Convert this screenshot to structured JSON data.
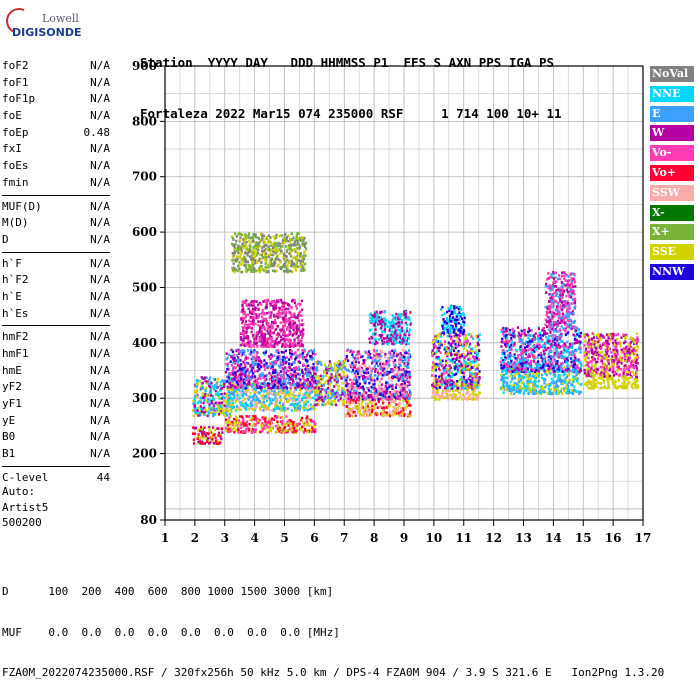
{
  "logo": {
    "line1": "Lowell",
    "line2": "DIGISONDE"
  },
  "header": {
    "labels": [
      "Station",
      "YYYY",
      "DAY",
      "DDD",
      "HHMMSS",
      "P1",
      "FFS",
      "S",
      "AXN",
      "PPS",
      "IGA",
      "PS"
    ],
    "values": [
      "Fortaleza",
      "2022",
      "Mar15",
      "074",
      "235000",
      "RSF",
      "",
      "1",
      "714",
      "100",
      "10+",
      "11"
    ]
  },
  "params": [
    [
      {
        "name": "foF2",
        "value": "N/A"
      },
      {
        "name": "foF1",
        "value": "N/A"
      },
      {
        "name": "foF1p",
        "value": "N/A"
      },
      {
        "name": "foE",
        "value": "N/A"
      },
      {
        "name": "foEp",
        "value": "0.48"
      },
      {
        "name": "fxI",
        "value": "N/A"
      },
      {
        "name": "foEs",
        "value": "N/A"
      },
      {
        "name": "fmin",
        "value": "N/A"
      }
    ],
    [
      {
        "name": "MUF(D)",
        "value": "N/A"
      },
      {
        "name": "M(D)",
        "value": "N/A"
      },
      {
        "name": "D",
        "value": "N/A"
      }
    ],
    [
      {
        "name": "h`F",
        "value": "N/A"
      },
      {
        "name": "h`F2",
        "value": "N/A"
      },
      {
        "name": "h`E",
        "value": "N/A"
      },
      {
        "name": "h`Es",
        "value": "N/A"
      }
    ],
    [
      {
        "name": "hmF2",
        "value": "N/A"
      },
      {
        "name": "hmF1",
        "value": "N/A"
      },
      {
        "name": "hmE",
        "value": "N/A"
      },
      {
        "name": "yF2",
        "value": "N/A"
      },
      {
        "name": "yF1",
        "value": "N/A"
      },
      {
        "name": "yE",
        "value": "N/A"
      },
      {
        "name": "B0",
        "value": "N/A"
      },
      {
        "name": "B1",
        "value": "N/A"
      }
    ],
    [
      {
        "name": "C-level",
        "value": "44"
      }
    ]
  ],
  "auto": {
    "line1": "Auto:",
    "line2": "Artist5",
    "line3": "500200"
  },
  "legend": [
    {
      "label": "NoVal",
      "color": "#808080"
    },
    {
      "label": "NNE",
      "color": "#00d8ff"
    },
    {
      "label": "E",
      "color": "#3ca0ff"
    },
    {
      "label": "W",
      "color": "#b400a0"
    },
    {
      "label": "Vo-",
      "color": "#ff3cb4"
    },
    {
      "label": "Vo+",
      "color": "#ff0032"
    },
    {
      "label": "SSW",
      "color": "#ffaaaa"
    },
    {
      "label": "X-",
      "color": "#007800"
    },
    {
      "label": "X+",
      "color": "#78b43c"
    },
    {
      "label": "SSE",
      "color": "#d2d200"
    },
    {
      "label": "NNW",
      "color": "#1e00dc"
    }
  ],
  "bottom": {
    "d_label": "D",
    "d_values": [
      "100",
      "200",
      "400",
      "600",
      "800",
      "1000",
      "1500",
      "3000",
      "[km]"
    ],
    "muf_label": "MUF",
    "muf_values": [
      "0.0",
      "0.0",
      "0.0",
      "0.0",
      "0.0",
      "0.0",
      "0.0",
      "0.0",
      "[MHz]"
    ],
    "footer": "FZA0M_2022074235000.RSF / 320fx256h 50 kHz 5.0 km / DPS-4 FZA0M 904 / 3.9 S 321.6 E   Ion2Png 1.3.20"
  },
  "chart_data": {
    "type": "scatter",
    "title": "",
    "xlabel": "",
    "ylabel": "",
    "xlim": [
      1,
      17
    ],
    "ylim": [
      80,
      900
    ],
    "x_ticks": [
      1,
      2,
      3,
      4,
      5,
      6,
      7,
      8,
      9,
      10,
      11,
      12,
      13,
      14,
      15,
      16,
      17
    ],
    "y_ticks": [
      80,
      200,
      300,
      400,
      500,
      600,
      700,
      800,
      900
    ],
    "grid": true,
    "legend_position": "right",
    "clusters": [
      {
        "x": [
          1.9,
          2.9
        ],
        "y": [
          220,
          250
        ],
        "colors": [
          "#ff0032",
          "#d2d200",
          "#b400a0"
        ]
      },
      {
        "x": [
          1.9,
          3.2
        ],
        "y": [
          270,
          340
        ],
        "colors": [
          "#3ca0ff",
          "#00d8ff",
          "#b400a0",
          "#d2d200"
        ]
      },
      {
        "x": [
          3.0,
          6.0
        ],
        "y": [
          240,
          270
        ],
        "colors": [
          "#ff0032",
          "#ff3cb4",
          "#d2d200"
        ]
      },
      {
        "x": [
          3.0,
          6.0
        ],
        "y": [
          280,
          330
        ],
        "colors": [
          "#d2d200",
          "#3ca0ff",
          "#00d8ff",
          "#ffaaaa"
        ]
      },
      {
        "x": [
          3.0,
          6.0
        ],
        "y": [
          320,
          390
        ],
        "colors": [
          "#b400a0",
          "#ff3cb4",
          "#3ca0ff",
          "#1e00dc"
        ]
      },
      {
        "x": [
          3.5,
          5.6
        ],
        "y": [
          395,
          480
        ],
        "colors": [
          "#b400a0",
          "#ff3cb4"
        ]
      },
      {
        "x": [
          3.2,
          5.7
        ],
        "y": [
          530,
          600
        ],
        "colors": [
          "#d2d200",
          "#78b43c",
          "#808080"
        ]
      },
      {
        "x": [
          6.0,
          7.0
        ],
        "y": [
          290,
          370
        ],
        "colors": [
          "#d2d200",
          "#3ca0ff",
          "#b400a0"
        ]
      },
      {
        "x": [
          7.0,
          9.2
        ],
        "y": [
          270,
          310
        ],
        "colors": [
          "#d2d200",
          "#ffaaaa",
          "#ff0032"
        ]
      },
      {
        "x": [
          7.0,
          9.2
        ],
        "y": [
          300,
          390
        ],
        "colors": [
          "#b400a0",
          "#3ca0ff",
          "#1e00dc",
          "#ffaaaa",
          "#ff3cb4"
        ]
      },
      {
        "x": [
          7.8,
          9.2
        ],
        "y": [
          400,
          460
        ],
        "colors": [
          "#b400a0",
          "#00d8ff"
        ]
      },
      {
        "x": [
          9.9,
          11.5
        ],
        "y": [
          300,
          330
        ],
        "colors": [
          "#d2d200",
          "#ffaaaa"
        ]
      },
      {
        "x": [
          9.9,
          11.5
        ],
        "y": [
          320,
          420
        ],
        "colors": [
          "#1e00dc",
          "#b400a0",
          "#00d8ff",
          "#ff3cb4",
          "#d2d200"
        ]
      },
      {
        "x": [
          10.2,
          11.0
        ],
        "y": [
          420,
          470
        ],
        "colors": [
          "#00d8ff",
          "#1e00dc"
        ]
      },
      {
        "x": [
          12.2,
          14.9
        ],
        "y": [
          310,
          360
        ],
        "colors": [
          "#3ca0ff",
          "#00d8ff",
          "#d2d200"
        ]
      },
      {
        "x": [
          12.2,
          14.9
        ],
        "y": [
          350,
          430
        ],
        "colors": [
          "#1e00dc",
          "#b400a0",
          "#3ca0ff",
          "#ff3cb4",
          "#00d8ff"
        ]
      },
      {
        "x": [
          13.7,
          14.7
        ],
        "y": [
          430,
          530
        ],
        "colors": [
          "#b400a0",
          "#ff3cb4",
          "#3ca0ff"
        ]
      },
      {
        "x": [
          15.0,
          16.8
        ],
        "y": [
          340,
          420
        ],
        "colors": [
          "#b400a0",
          "#ff3cb4",
          "#d2d200"
        ]
      },
      {
        "x": [
          15.0,
          16.8
        ],
        "y": [
          320,
          340
        ],
        "colors": [
          "#d2d200"
        ]
      }
    ]
  }
}
